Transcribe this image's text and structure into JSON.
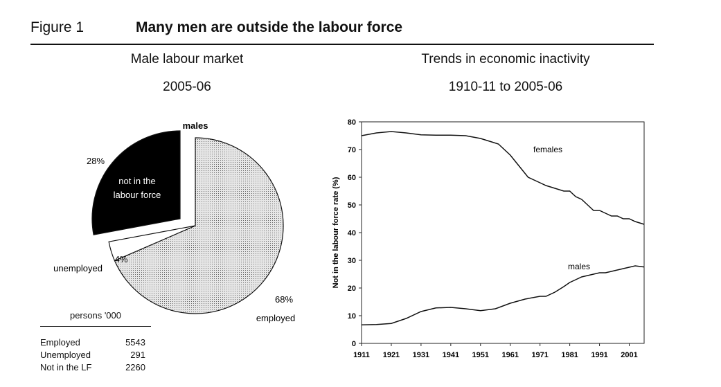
{
  "header": {
    "figure_label": "Figure 1",
    "title": "Many men are outside the labour force"
  },
  "colors": {
    "ink": "#111111",
    "employed_fill": "#d9d9d9",
    "nilf_fill": "#000000",
    "unemployed_fill": "#ffffff"
  },
  "chart_data": [
    {
      "type": "pie",
      "title": "Male labour market",
      "subtitle": "2005-06",
      "series_label": "males",
      "slices": [
        {
          "name": "employed",
          "percent_label": "68%",
          "value": 5543
        },
        {
          "name": "unemployed",
          "percent_label": "4%",
          "value": 291
        },
        {
          "name": "not in the labour force",
          "name_line1": "not in the",
          "name_line2": "labour force",
          "percent_label": "28%",
          "value": 2260,
          "exploded": true
        }
      ],
      "table": {
        "header": "persons '000",
        "rows": [
          {
            "label": "Employed",
            "value": "5543"
          },
          {
            "label": "Unemployed",
            "value": "291"
          },
          {
            "label": "Not in the LF",
            "value": "2260"
          }
        ]
      }
    },
    {
      "type": "line",
      "title": "Trends in economic inactivity",
      "subtitle": "1910-11 to 2005-06",
      "xlabel": "",
      "ylabel": "Not in the labour force rate (%)",
      "xlim": [
        1911,
        2006
      ],
      "ylim": [
        0,
        80
      ],
      "xticks": [
        "1911",
        "1921",
        "1931",
        "1941",
        "1951",
        "1961",
        "1971",
        "1981",
        "1991",
        "2001"
      ],
      "yticks": [
        0,
        10,
        20,
        30,
        40,
        50,
        60,
        70,
        80
      ],
      "grid": false,
      "series": [
        {
          "name": "females",
          "x": [
            1911,
            1916,
            1921,
            1926,
            1931,
            1936,
            1941,
            1946,
            1951,
            1954,
            1957,
            1961,
            1964,
            1967,
            1971,
            1973,
            1976,
            1979,
            1981,
            1983,
            1985,
            1987,
            1989,
            1991,
            1993,
            1995,
            1997,
            1999,
            2001,
            2003,
            2006
          ],
          "y": [
            75,
            76,
            76.5,
            76,
            75.3,
            75.2,
            75.2,
            75,
            74,
            73,
            72,
            68,
            64,
            60,
            58,
            57,
            56,
            55,
            55,
            53,
            52,
            50,
            48,
            48,
            47,
            46,
            46,
            45,
            45,
            44,
            43
          ]
        },
        {
          "name": "males",
          "x": [
            1911,
            1916,
            1921,
            1926,
            1931,
            1936,
            1941,
            1946,
            1951,
            1956,
            1961,
            1966,
            1971,
            1973,
            1976,
            1979,
            1981,
            1983,
            1985,
            1987,
            1989,
            1991,
            1993,
            1995,
            1997,
            1999,
            2001,
            2003,
            2006
          ],
          "y": [
            6.7,
            6.8,
            7.2,
            9,
            11.5,
            12.8,
            13,
            12.5,
            11.8,
            12.5,
            14.5,
            16,
            17,
            17,
            18.5,
            20.5,
            22,
            23,
            24,
            24.5,
            25,
            25.5,
            25.5,
            26,
            26.5,
            27,
            27.5,
            28,
            27.6
          ]
        }
      ]
    }
  ]
}
